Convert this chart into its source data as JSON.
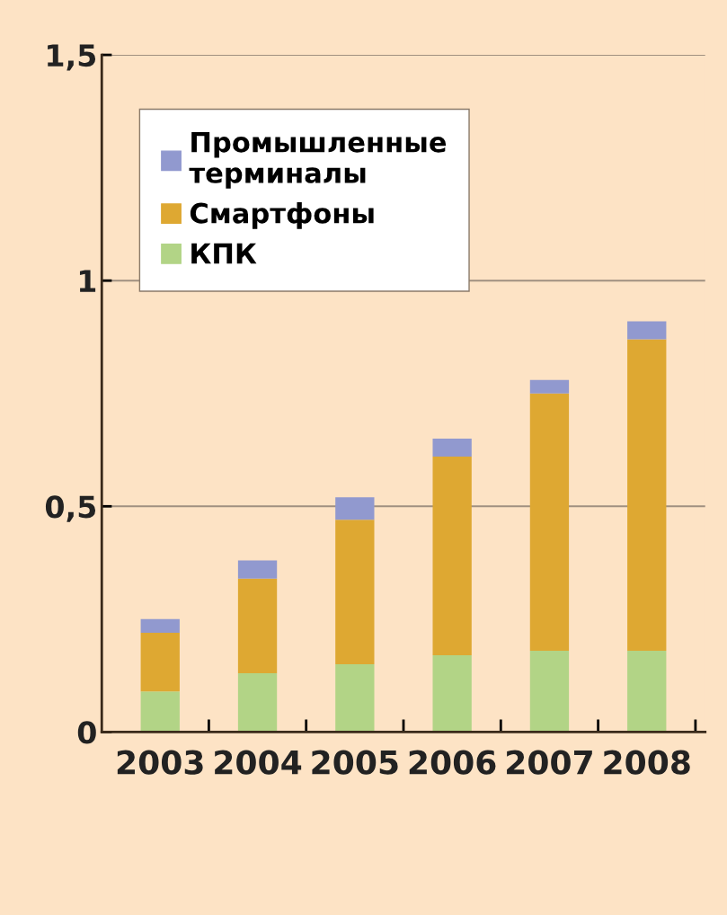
{
  "chart_data": {
    "type": "bar",
    "stacked": true,
    "categories": [
      "2003",
      "2004",
      "2005",
      "2006",
      "2007",
      "2008"
    ],
    "series": [
      {
        "name": "КПК",
        "color": "#b2d486",
        "values": [
          0.09,
          0.13,
          0.15,
          0.17,
          0.18,
          0.18
        ]
      },
      {
        "name": "Смартфоны",
        "color": "#dea832",
        "values": [
          0.13,
          0.21,
          0.32,
          0.44,
          0.57,
          0.69
        ]
      },
      {
        "name": "Промышленные терминалы",
        "color": "#9199cf",
        "values": [
          0.03,
          0.04,
          0.05,
          0.04,
          0.03,
          0.04
        ]
      }
    ],
    "ylim": [
      0,
      1.5
    ],
    "yticks": [
      {
        "value": 0,
        "label": "0"
      },
      {
        "value": 0.5,
        "label": "0,5"
      },
      {
        "value": 1,
        "label": "1"
      },
      {
        "value": 1.5,
        "label": "1,5"
      }
    ],
    "grid": "y",
    "legend": "top left"
  }
}
